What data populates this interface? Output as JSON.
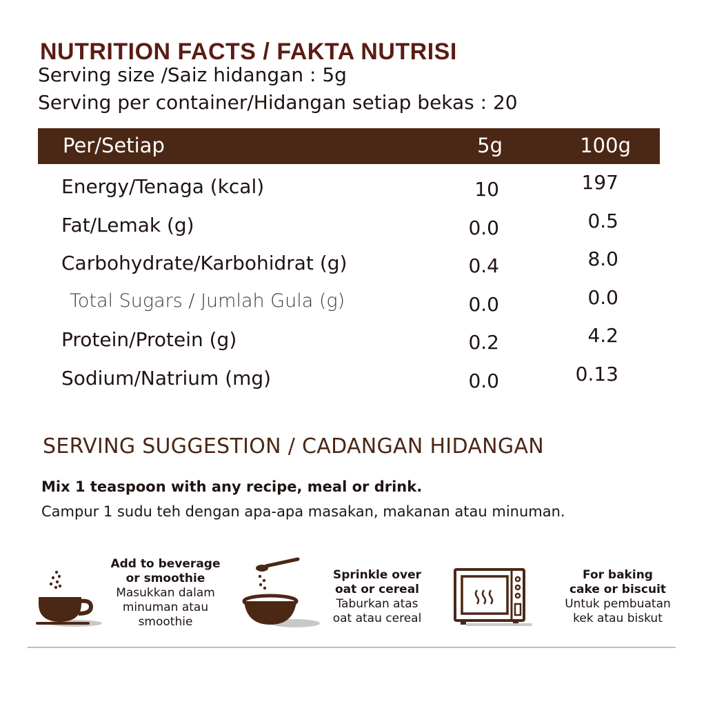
{
  "header": {
    "title": "NUTRITION FACTS / FAKTA NUTRISI",
    "serving_size": "Serving size /Saiz hidangan : 5g",
    "servings_per_container": "Serving per container/Hidangan setiap bekas : 20"
  },
  "table": {
    "header": {
      "label": "Per/Setiap",
      "col1": "5g",
      "col2": "100g"
    },
    "rows": [
      {
        "label": "Energy/Tenaga (kcal)",
        "per_serving": "10",
        "per_100g": "197"
      },
      {
        "label": "Fat/Lemak (g)",
        "per_serving": "0.0",
        "per_100g": "0.5"
      },
      {
        "label": "Carbohydrate/Karbohidrat (g)",
        "per_serving": "0.4",
        "per_100g": "8.0"
      },
      {
        "label": "Total Sugars / Jumlah Gula (g)",
        "per_serving": "0.0",
        "per_100g": "0.0"
      },
      {
        "label": "Protein/Protein (g)",
        "per_serving": "0.2",
        "per_100g": "4.2"
      },
      {
        "label": "Sodium/Natrium (mg)",
        "per_serving": "0.0",
        "per_100g": "0.13"
      }
    ]
  },
  "suggestion": {
    "title": "SERVING SUGGESTION / CADANGAN HIDANGAN",
    "line_en": "Mix 1 teaspoon with any recipe, meal or drink.",
    "line_my": "Campur 1 sudu teh dengan apa-apa masakan, makanan atau minuman.",
    "items": [
      {
        "icon": "coffee-cup-icon",
        "en": [
          "Add to beverage",
          "or smoothie"
        ],
        "my": [
          "Masukkan dalam",
          "minuman atau",
          "smoothie"
        ]
      },
      {
        "icon": "bowl-spoon-icon",
        "en": [
          "Sprinkle over",
          "oat or cereal"
        ],
        "my": [
          "Taburkan atas",
          "oat atau cereal"
        ]
      },
      {
        "icon": "oven-icon",
        "en": [
          "For baking",
          "cake or biscuit"
        ],
        "my": [
          "Untuk pembuatan",
          "kek atau biskut"
        ]
      }
    ]
  },
  "colors": {
    "title": "#5a1c14",
    "header_band": "#4b2716",
    "text": "#1e1412",
    "icon": "#4b2716",
    "icon_shadow": "#c8c8c8"
  }
}
